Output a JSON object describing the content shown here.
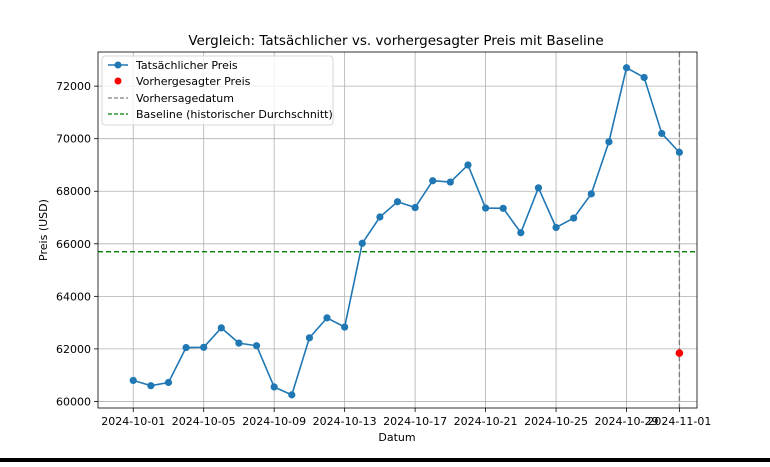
{
  "chart_data": {
    "type": "line",
    "title": "Vergleich: Tatsächlicher vs. vorhergesagter Preis mit Baseline",
    "xlabel": "Datum",
    "ylabel": "Preis (USD)",
    "x_tick_labels": [
      "2024-10-01",
      "2024-10-05",
      "2024-10-09",
      "2024-10-13",
      "2024-10-17",
      "2024-10-21",
      "2024-10-25",
      "2024-10-29",
      "2024-11-01"
    ],
    "y_tick_labels": [
      "60000",
      "62000",
      "64000",
      "66000",
      "68000",
      "70000",
      "72000"
    ],
    "y_ticks": [
      60000,
      62000,
      64000,
      66000,
      68000,
      70000,
      72000
    ],
    "ylim": [
      59750,
      73300
    ],
    "xlim": [
      "2024-09-29",
      "2024-11-02"
    ],
    "grid": true,
    "legend_position": "top-left",
    "series": [
      {
        "name": "Tatsächlicher Preis",
        "style": "line-with-markers",
        "color": "#1f77b4",
        "x": [
          "2024-10-01",
          "2024-10-02",
          "2024-10-03",
          "2024-10-04",
          "2024-10-05",
          "2024-10-06",
          "2024-10-07",
          "2024-10-08",
          "2024-10-09",
          "2024-10-10",
          "2024-10-11",
          "2024-10-12",
          "2024-10-13",
          "2024-10-14",
          "2024-10-15",
          "2024-10-16",
          "2024-10-17",
          "2024-10-18",
          "2024-10-19",
          "2024-10-20",
          "2024-10-21",
          "2024-10-22",
          "2024-10-23",
          "2024-10-24",
          "2024-10-25",
          "2024-10-26",
          "2024-10-27",
          "2024-10-28",
          "2024-10-29",
          "2024-10-30",
          "2024-10-31",
          "2024-11-01"
        ],
        "values": [
          60800,
          60600,
          60720,
          62050,
          62060,
          62800,
          62220,
          62120,
          60550,
          60250,
          62420,
          63180,
          62830,
          66020,
          67020,
          67600,
          67380,
          68400,
          68350,
          69000,
          67360,
          67350,
          66420,
          68130,
          66620,
          66980,
          67900,
          69880,
          72700,
          72330,
          70200,
          69480
        ]
      },
      {
        "name": "Vorhergesagter Preis",
        "style": "point",
        "color": "#ff0000",
        "x": [
          "2024-11-01"
        ],
        "values": [
          61840
        ]
      }
    ],
    "reference_lines": [
      {
        "name": "Vorhersagedatum",
        "orientation": "vertical",
        "x": "2024-11-01",
        "style": "dashed",
        "color": "#808080"
      },
      {
        "name": "Baseline (historischer Durchschnitt)",
        "orientation": "horizontal",
        "y": 65700,
        "style": "dashed",
        "color": "#008000"
      }
    ],
    "colors": {
      "grid": "#b0b0b0",
      "axis": "#000000"
    }
  }
}
